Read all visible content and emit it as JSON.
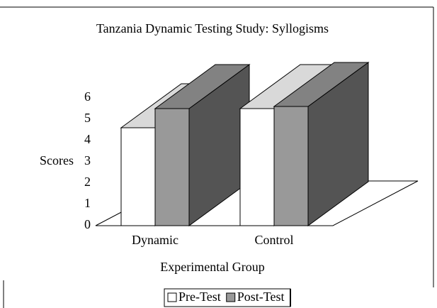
{
  "chart_data": {
    "type": "bar3d",
    "title": "Tanzania Dynamic Testing Study:  Syllogisms",
    "x_label": "Experimental Group",
    "y_label": "Scores",
    "categories": [
      "Dynamic",
      "Control"
    ],
    "series": [
      {
        "name": "Pre-Test",
        "color": "#ffffff",
        "values": [
          4.6,
          5.5
        ]
      },
      {
        "name": "Post-Test",
        "color": "#999999",
        "values": [
          5.5,
          5.6
        ]
      }
    ],
    "ylim": [
      0,
      6
    ],
    "yticks": [
      0,
      1,
      2,
      3,
      4,
      5,
      6
    ],
    "legend": "bottom"
  }
}
